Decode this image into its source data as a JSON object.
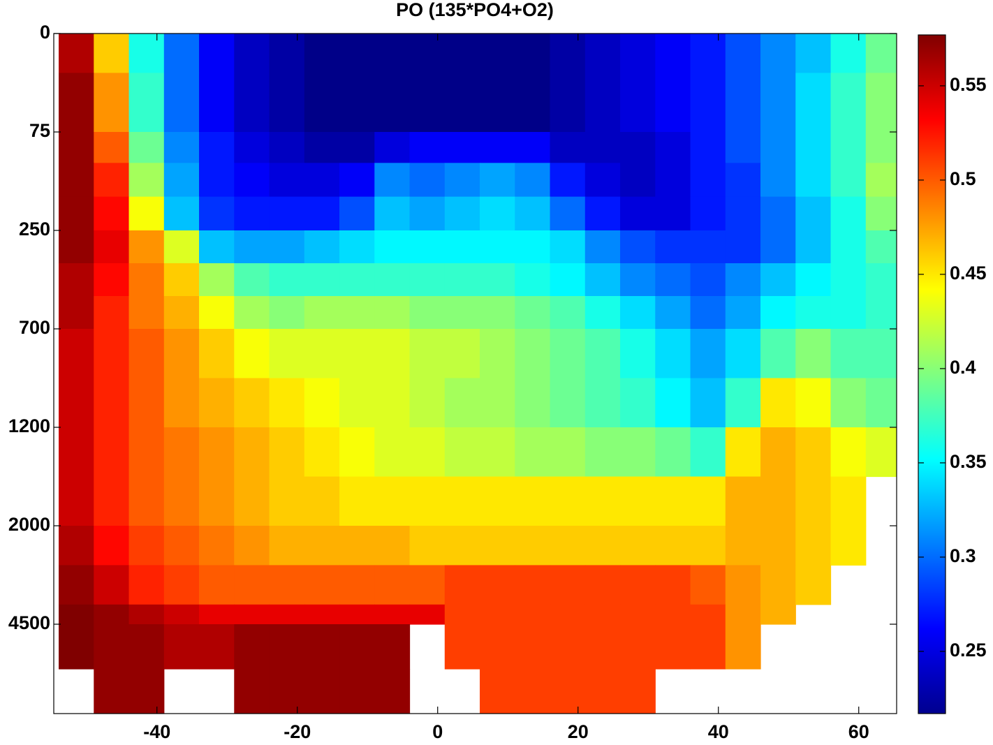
{
  "chart_data": {
    "type": "heatmap",
    "title": "PO (135*PO4+O2)",
    "colormap": "jet",
    "x_edges": [
      -54,
      -49,
      -44,
      -39,
      -34,
      -29,
      -24,
      -19,
      -14,
      -9,
      -4,
      1,
      6,
      11,
      16,
      21,
      26,
      31,
      36,
      41,
      46,
      51,
      56,
      61,
      66
    ],
    "y_edges": [
      0,
      30,
      75,
      130,
      190,
      250,
      400,
      550,
      700,
      950,
      1200,
      1600,
      2000,
      3000,
      4000,
      4500,
      5000,
      5500
    ],
    "values": [
      [
        0.56,
        0.46,
        0.36,
        0.3,
        0.26,
        0.24,
        0.23,
        0.22,
        0.22,
        0.22,
        0.22,
        0.22,
        0.22,
        0.22,
        0.23,
        0.24,
        0.25,
        0.26,
        0.27,
        0.29,
        0.31,
        0.33,
        0.36,
        0.39
      ],
      [
        0.57,
        0.48,
        0.37,
        0.3,
        0.26,
        0.24,
        0.23,
        0.22,
        0.22,
        0.22,
        0.22,
        0.22,
        0.22,
        0.22,
        0.23,
        0.24,
        0.25,
        0.26,
        0.27,
        0.29,
        0.31,
        0.34,
        0.37,
        0.4
      ],
      [
        0.57,
        0.5,
        0.39,
        0.31,
        0.27,
        0.25,
        0.24,
        0.23,
        0.23,
        0.25,
        0.26,
        0.26,
        0.26,
        0.26,
        0.24,
        0.24,
        0.24,
        0.25,
        0.27,
        0.29,
        0.31,
        0.34,
        0.37,
        0.4
      ],
      [
        0.57,
        0.52,
        0.41,
        0.32,
        0.27,
        0.26,
        0.25,
        0.25,
        0.26,
        0.31,
        0.3,
        0.31,
        0.32,
        0.31,
        0.27,
        0.25,
        0.24,
        0.25,
        0.27,
        0.28,
        0.31,
        0.34,
        0.37,
        0.41
      ],
      [
        0.57,
        0.53,
        0.44,
        0.33,
        0.28,
        0.27,
        0.27,
        0.27,
        0.29,
        0.33,
        0.32,
        0.33,
        0.34,
        0.33,
        0.3,
        0.27,
        0.25,
        0.25,
        0.27,
        0.28,
        0.3,
        0.33,
        0.36,
        0.4
      ],
      [
        0.57,
        0.54,
        0.48,
        0.43,
        0.33,
        0.32,
        0.32,
        0.33,
        0.34,
        0.35,
        0.35,
        0.35,
        0.35,
        0.35,
        0.34,
        0.31,
        0.29,
        0.28,
        0.28,
        0.28,
        0.3,
        0.33,
        0.36,
        0.38
      ],
      [
        0.56,
        0.53,
        0.49,
        0.46,
        0.41,
        0.38,
        0.37,
        0.37,
        0.37,
        0.37,
        0.37,
        0.37,
        0.37,
        0.36,
        0.35,
        0.33,
        0.31,
        0.3,
        0.29,
        0.31,
        0.33,
        0.35,
        0.36,
        0.37
      ],
      [
        0.56,
        0.52,
        0.49,
        0.47,
        0.44,
        0.41,
        0.4,
        0.41,
        0.41,
        0.41,
        0.4,
        0.4,
        0.4,
        0.39,
        0.38,
        0.36,
        0.34,
        0.32,
        0.3,
        0.32,
        0.35,
        0.36,
        0.36,
        0.37
      ],
      [
        0.55,
        0.52,
        0.5,
        0.48,
        0.46,
        0.44,
        0.43,
        0.43,
        0.43,
        0.43,
        0.42,
        0.42,
        0.41,
        0.4,
        0.39,
        0.38,
        0.36,
        0.34,
        0.32,
        0.34,
        0.38,
        0.4,
        0.38,
        0.38
      ],
      [
        0.55,
        0.52,
        0.5,
        0.48,
        0.47,
        0.46,
        0.45,
        0.44,
        0.43,
        0.43,
        0.42,
        0.41,
        0.41,
        0.4,
        0.39,
        0.38,
        0.37,
        0.35,
        0.33,
        0.37,
        0.45,
        0.44,
        0.4,
        0.39
      ],
      [
        0.55,
        0.52,
        0.5,
        0.49,
        0.48,
        0.47,
        0.46,
        0.45,
        0.44,
        0.43,
        0.43,
        0.42,
        0.42,
        0.41,
        0.41,
        0.4,
        0.4,
        0.39,
        0.37,
        0.45,
        0.47,
        0.46,
        0.44,
        0.43
      ],
      [
        0.55,
        0.52,
        0.5,
        0.49,
        0.48,
        0.47,
        0.46,
        0.46,
        0.45,
        0.45,
        0.45,
        0.45,
        0.45,
        0.45,
        0.45,
        0.45,
        0.45,
        0.45,
        0.45,
        0.47,
        0.47,
        0.46,
        0.45,
        null
      ],
      [
        0.56,
        0.53,
        0.51,
        0.5,
        0.49,
        0.48,
        0.47,
        0.47,
        0.47,
        0.47,
        0.46,
        0.46,
        0.46,
        0.46,
        0.46,
        0.46,
        0.46,
        0.46,
        0.46,
        0.47,
        0.47,
        0.46,
        0.45,
        null
      ],
      [
        0.57,
        0.55,
        0.52,
        0.51,
        0.5,
        0.5,
        0.5,
        0.5,
        0.5,
        0.5,
        0.5,
        0.51,
        0.51,
        0.51,
        0.51,
        0.51,
        0.51,
        0.51,
        0.5,
        0.48,
        0.47,
        0.46,
        null,
        null
      ],
      [
        0.58,
        0.57,
        0.56,
        0.55,
        0.54,
        0.54,
        0.54,
        0.54,
        0.54,
        0.54,
        0.54,
        0.51,
        0.51,
        0.51,
        0.51,
        0.51,
        0.51,
        0.51,
        0.51,
        0.48,
        0.47,
        null,
        null,
        null
      ],
      [
        0.58,
        0.57,
        0.57,
        0.56,
        0.56,
        0.57,
        0.57,
        0.57,
        0.57,
        0.57,
        null,
        0.51,
        0.51,
        0.51,
        0.51,
        0.51,
        0.51,
        0.51,
        0.51,
        0.48,
        null,
        null,
        null,
        null
      ],
      [
        null,
        0.57,
        0.57,
        null,
        null,
        0.57,
        0.57,
        0.57,
        0.57,
        0.57,
        null,
        null,
        0.51,
        0.51,
        0.51,
        0.51,
        0.51,
        null,
        null,
        null,
        null,
        null,
        null,
        null
      ]
    ],
    "xlim": [
      -54.7,
      65.4
    ],
    "xticks": [
      -40,
      -20,
      0,
      20,
      40,
      60
    ],
    "ylim": [
      0,
      5500
    ],
    "yticks": [
      0,
      75,
      250,
      700,
      1200,
      2000,
      4500
    ],
    "clim": [
      0.217,
      0.577
    ],
    "cticks": [
      0.25,
      0.3,
      0.35,
      0.4,
      0.45,
      0.5,
      0.55
    ]
  }
}
